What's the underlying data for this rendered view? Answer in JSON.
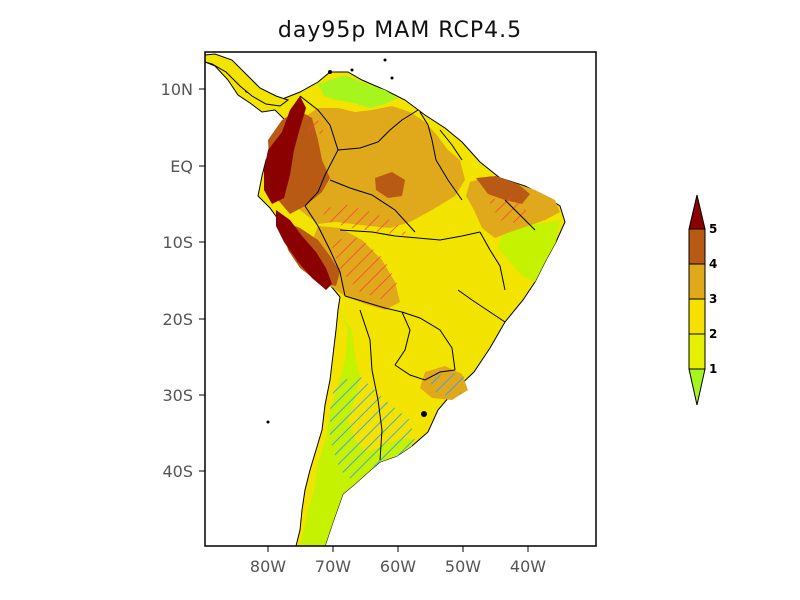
{
  "title": "day95p MAM RCP4.5",
  "axes": {
    "lat_ticks": [
      "10N",
      "EQ",
      "10S",
      "20S",
      "30S",
      "40S"
    ],
    "lon_ticks": [
      "80W",
      "70W",
      "60W",
      "50W",
      "40W"
    ]
  },
  "legend": {
    "labels": [
      "1",
      "2",
      "3",
      "4",
      "5"
    ],
    "colors": [
      "#a6f51f",
      "#e6f000",
      "#f5e000",
      "#dfa91b",
      "#b85a14",
      "#8b0000"
    ]
  },
  "colors": {
    "land_default": "#f3e400",
    "hatch_red": "#ff4040",
    "hatch_blue": "#3c9bff"
  }
}
